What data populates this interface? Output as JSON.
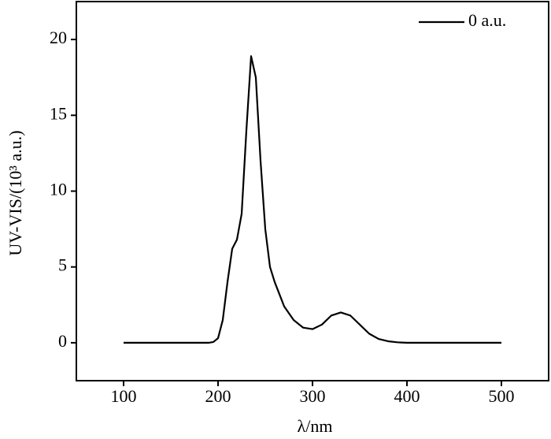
{
  "chart_data": {
    "type": "line",
    "x_label": "λ/nm",
    "y_label": "UV-VIS/(10³ a.u.)",
    "x": [
      100,
      150,
      190,
      195,
      200,
      205,
      210,
      215,
      220,
      225,
      230,
      235,
      240,
      245,
      250,
      255,
      260,
      265,
      270,
      280,
      290,
      300,
      310,
      320,
      330,
      340,
      350,
      360,
      370,
      380,
      390,
      400,
      450,
      500
    ],
    "series": [
      {
        "name": "0 a.u.",
        "color": "#000000",
        "values": [
          0,
          0,
          0,
          0.05,
          0.3,
          1.5,
          4.0,
          6.2,
          6.8,
          8.5,
          14,
          18.9,
          17.5,
          12,
          7.5,
          5,
          4.0,
          3.2,
          2.4,
          1.5,
          1.0,
          0.9,
          1.2,
          1.8,
          2.0,
          1.8,
          1.2,
          0.6,
          0.25,
          0.1,
          0.03,
          0,
          0,
          0
        ]
      }
    ],
    "xlim": [
      50,
      550
    ],
    "xticks": [
      100,
      200,
      300,
      400,
      500
    ],
    "ylim": [
      -2.5,
      22.5
    ],
    "yticks": [
      0,
      5,
      10,
      15,
      20
    ],
    "legend": "top-right"
  }
}
